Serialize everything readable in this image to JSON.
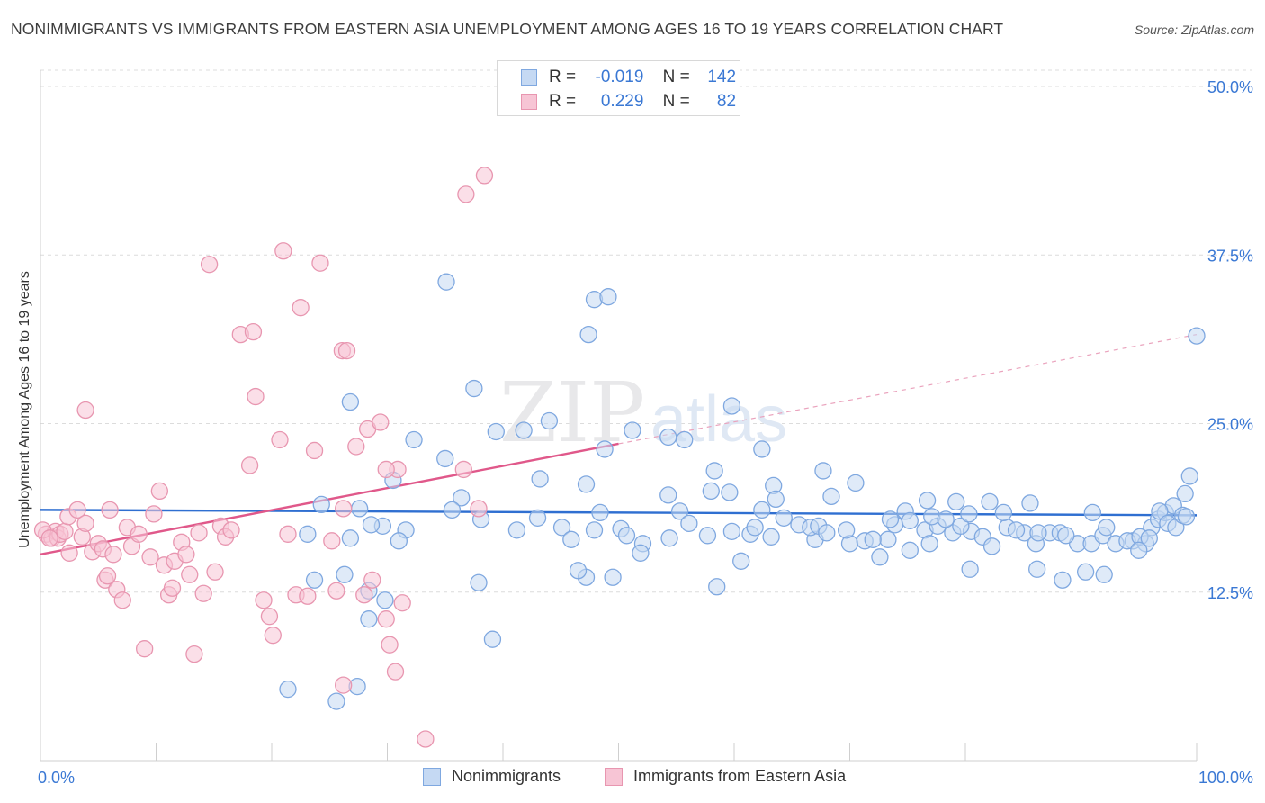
{
  "title": "NONIMMIGRANTS VS IMMIGRANTS FROM EASTERN ASIA UNEMPLOYMENT AMONG AGES 16 TO 19 YEARS CORRELATION CHART",
  "source": "Source: ZipAtlas.com",
  "watermark": {
    "zip": "ZIP",
    "atlas": "atlas"
  },
  "legend": [
    {
      "r_label": "R =",
      "r_value": "-0.019",
      "n_label": "N =",
      "n_value": "142"
    },
    {
      "r_label": "R =",
      "r_value": "0.229",
      "n_label": "N =",
      "n_value": "82"
    }
  ],
  "chart_data": {
    "type": "scatter",
    "ylabel": "Unemployment Among Ages 16 to 19 years",
    "xlim": [
      0,
      100
    ],
    "ylim": [
      0,
      50
    ],
    "x_tick_labels": [
      {
        "value": 0,
        "label": "0.0%"
      },
      {
        "value": 100,
        "label": "100.0%"
      }
    ],
    "y_tick_labels": [
      {
        "value": 12.5,
        "label": "12.5%"
      },
      {
        "value": 25.0,
        "label": "25.0%"
      },
      {
        "value": 37.5,
        "label": "37.5%"
      },
      {
        "value": 50.0,
        "label": "50.0%"
      }
    ],
    "grid": "horizontal-dashed",
    "series": [
      {
        "name": "Nonimmigrants",
        "color": "#7fa8e0",
        "fill": "#c5d9f3",
        "trend": {
          "x": [
            0,
            100
          ],
          "y": [
            18.6,
            18.2
          ],
          "color": "#2f6fd1"
        },
        "points": [
          [
            21.4,
            5.3
          ],
          [
            25.6,
            4.4
          ],
          [
            27.4,
            5.5
          ],
          [
            28.4,
            10.5
          ],
          [
            29.8,
            11.9
          ],
          [
            26.3,
            13.8
          ],
          [
            28.4,
            12.6
          ],
          [
            37.9,
            13.2
          ],
          [
            39.1,
            9.0
          ],
          [
            47.2,
            13.6
          ],
          [
            46.5,
            14.1
          ],
          [
            49.5,
            13.6
          ],
          [
            48.4,
            18.4
          ],
          [
            54.3,
            19.7
          ],
          [
            55.3,
            18.5
          ],
          [
            60.6,
            14.8
          ],
          [
            58.5,
            12.9
          ],
          [
            61.4,
            16.8
          ],
          [
            63.2,
            16.6
          ],
          [
            67.0,
            16.4
          ],
          [
            70.0,
            16.1
          ],
          [
            73.3,
            16.4
          ],
          [
            73.9,
            17.5
          ],
          [
            74.8,
            18.5
          ],
          [
            76.5,
            17.1
          ],
          [
            76.9,
            16.1
          ],
          [
            77.6,
            17.4
          ],
          [
            78.9,
            16.9
          ],
          [
            80.5,
            17.0
          ],
          [
            81.5,
            16.6
          ],
          [
            82.3,
            15.9
          ],
          [
            83.6,
            17.3
          ],
          [
            85.1,
            16.9
          ],
          [
            86.1,
            16.1
          ],
          [
            87.3,
            16.9
          ],
          [
            88.2,
            16.9
          ],
          [
            89.7,
            16.1
          ],
          [
            90.9,
            16.1
          ],
          [
            91.9,
            16.7
          ],
          [
            93.0,
            16.1
          ],
          [
            94.5,
            16.3
          ],
          [
            95.6,
            16.1
          ],
          [
            96.1,
            17.3
          ],
          [
            96.7,
            17.9
          ],
          [
            97.3,
            18.4
          ],
          [
            98.0,
            18.9
          ],
          [
            99.0,
            19.8
          ],
          [
            99.4,
            21.1
          ],
          [
            100.0,
            31.5
          ],
          [
            35.1,
            35.5
          ],
          [
            47.9,
            34.2
          ],
          [
            49.1,
            34.4
          ],
          [
            47.4,
            31.6
          ],
          [
            26.8,
            26.6
          ],
          [
            37.5,
            27.6
          ],
          [
            44.0,
            25.2
          ],
          [
            41.8,
            24.5
          ],
          [
            39.4,
            24.4
          ],
          [
            48.8,
            23.1
          ],
          [
            51.2,
            24.5
          ],
          [
            54.3,
            24.0
          ],
          [
            55.7,
            23.8
          ],
          [
            59.8,
            26.3
          ],
          [
            62.4,
            23.1
          ],
          [
            32.3,
            23.8
          ],
          [
            35.0,
            22.4
          ],
          [
            43.2,
            20.9
          ],
          [
            47.2,
            20.5
          ],
          [
            58.3,
            21.5
          ],
          [
            63.4,
            20.4
          ],
          [
            67.7,
            21.5
          ],
          [
            70.5,
            20.6
          ],
          [
            58.0,
            20.0
          ],
          [
            59.6,
            19.9
          ],
          [
            63.6,
            19.4
          ],
          [
            68.4,
            19.6
          ],
          [
            76.7,
            19.3
          ],
          [
            79.2,
            19.2
          ],
          [
            85.6,
            19.1
          ],
          [
            96.8,
            18.5
          ],
          [
            50.2,
            17.2
          ],
          [
            50.7,
            16.7
          ],
          [
            52.1,
            16.1
          ],
          [
            51.9,
            15.4
          ],
          [
            54.4,
            16.5
          ],
          [
            56.1,
            17.6
          ],
          [
            57.7,
            16.7
          ],
          [
            59.8,
            17.0
          ],
          [
            61.8,
            17.3
          ],
          [
            62.4,
            18.6
          ],
          [
            64.3,
            18.0
          ],
          [
            65.6,
            17.5
          ],
          [
            66.6,
            17.3
          ],
          [
            67.3,
            17.4
          ],
          [
            68.0,
            16.9
          ],
          [
            69.7,
            17.1
          ],
          [
            71.3,
            16.3
          ],
          [
            72.0,
            16.4
          ],
          [
            73.5,
            17.9
          ],
          [
            75.2,
            17.8
          ],
          [
            77.1,
            18.1
          ],
          [
            78.3,
            17.9
          ],
          [
            79.6,
            17.4
          ],
          [
            80.3,
            18.3
          ],
          [
            82.1,
            19.2
          ],
          [
            83.3,
            18.4
          ],
          [
            84.4,
            17.1
          ],
          [
            86.3,
            16.9
          ],
          [
            88.7,
            16.7
          ],
          [
            91.0,
            18.4
          ],
          [
            92.2,
            17.3
          ],
          [
            94.0,
            16.3
          ],
          [
            95.1,
            16.6
          ],
          [
            95.9,
            16.5
          ],
          [
            97.5,
            17.6
          ],
          [
            98.2,
            17.3
          ],
          [
            98.8,
            18.2
          ],
          [
            99.1,
            18.1
          ],
          [
            41.2,
            17.1
          ],
          [
            43.0,
            18.0
          ],
          [
            45.1,
            17.3
          ],
          [
            45.9,
            16.4
          ],
          [
            47.9,
            17.1
          ],
          [
            38.1,
            17.9
          ],
          [
            36.4,
            19.5
          ],
          [
            35.6,
            18.6
          ],
          [
            31.6,
            17.1
          ],
          [
            30.5,
            20.8
          ],
          [
            31.0,
            16.3
          ],
          [
            29.6,
            17.4
          ],
          [
            28.6,
            17.5
          ],
          [
            27.6,
            18.7
          ],
          [
            26.8,
            16.5
          ],
          [
            24.3,
            19.0
          ],
          [
            23.1,
            16.8
          ],
          [
            23.7,
            13.4
          ],
          [
            72.6,
            15.1
          ],
          [
            75.2,
            15.6
          ],
          [
            80.4,
            14.2
          ],
          [
            86.2,
            14.2
          ],
          [
            88.4,
            13.4
          ],
          [
            90.4,
            14.0
          ],
          [
            92.0,
            13.8
          ],
          [
            95.0,
            15.6
          ]
        ]
      },
      {
        "name": "Immigrants from Eastern Asia",
        "color": "#e896b0",
        "fill": "#f7c5d5",
        "trend": {
          "x": [
            0,
            50
          ],
          "y": [
            15.3,
            23.5
          ],
          "color": "#e0588a",
          "extension_to": [
            100,
            31.6
          ]
        },
        "points": [
          [
            0.5,
            16.8
          ],
          [
            1.0,
            16.5
          ],
          [
            1.3,
            17.0
          ],
          [
            1.5,
            16.5
          ],
          [
            1.7,
            16.8
          ],
          [
            2.1,
            17.0
          ],
          [
            2.4,
            18.1
          ],
          [
            2.5,
            15.4
          ],
          [
            3.2,
            18.6
          ],
          [
            3.6,
            16.6
          ],
          [
            3.9,
            17.6
          ],
          [
            4.5,
            15.5
          ],
          [
            5.0,
            16.1
          ],
          [
            5.4,
            15.7
          ],
          [
            5.6,
            13.4
          ],
          [
            5.8,
            13.7
          ],
          [
            6.0,
            18.6
          ],
          [
            6.3,
            15.3
          ],
          [
            6.6,
            12.7
          ],
          [
            7.1,
            11.9
          ],
          [
            7.5,
            17.3
          ],
          [
            7.9,
            15.9
          ],
          [
            8.5,
            16.8
          ],
          [
            9.0,
            8.3
          ],
          [
            9.5,
            15.1
          ],
          [
            9.8,
            18.3
          ],
          [
            10.3,
            20.0
          ],
          [
            10.7,
            14.5
          ],
          [
            11.1,
            12.3
          ],
          [
            11.4,
            12.8
          ],
          [
            11.6,
            14.8
          ],
          [
            12.2,
            16.2
          ],
          [
            12.6,
            15.3
          ],
          [
            12.9,
            13.8
          ],
          [
            13.3,
            7.9
          ],
          [
            13.7,
            16.9
          ],
          [
            14.1,
            12.4
          ],
          [
            14.6,
            36.8
          ],
          [
            15.1,
            14.0
          ],
          [
            15.6,
            17.4
          ],
          [
            16.0,
            16.6
          ],
          [
            16.5,
            17.1
          ],
          [
            17.3,
            31.6
          ],
          [
            18.1,
            21.9
          ],
          [
            18.4,
            31.8
          ],
          [
            18.6,
            27.0
          ],
          [
            19.3,
            11.9
          ],
          [
            19.8,
            10.7
          ],
          [
            20.1,
            9.3
          ],
          [
            20.7,
            23.8
          ],
          [
            21.0,
            37.8
          ],
          [
            21.4,
            16.8
          ],
          [
            22.1,
            12.3
          ],
          [
            22.5,
            33.6
          ],
          [
            23.1,
            12.2
          ],
          [
            23.7,
            23.0
          ],
          [
            24.2,
            36.9
          ],
          [
            25.2,
            16.3
          ],
          [
            25.6,
            12.6
          ],
          [
            26.1,
            30.4
          ],
          [
            26.5,
            30.4
          ],
          [
            26.2,
            18.7
          ],
          [
            27.3,
            23.3
          ],
          [
            28.0,
            12.3
          ],
          [
            28.3,
            24.6
          ],
          [
            28.7,
            13.4
          ],
          [
            29.4,
            25.1
          ],
          [
            29.9,
            10.5
          ],
          [
            30.2,
            8.6
          ],
          [
            30.7,
            6.6
          ],
          [
            30.9,
            21.6
          ],
          [
            31.3,
            11.7
          ],
          [
            33.3,
            1.6
          ],
          [
            36.8,
            42.0
          ],
          [
            38.4,
            43.4
          ],
          [
            37.9,
            18.7
          ],
          [
            36.6,
            21.6
          ],
          [
            3.9,
            26.0
          ],
          [
            0.2,
            17.1
          ],
          [
            0.8,
            16.5
          ],
          [
            29.9,
            21.6
          ],
          [
            26.2,
            5.6
          ]
        ]
      }
    ]
  }
}
